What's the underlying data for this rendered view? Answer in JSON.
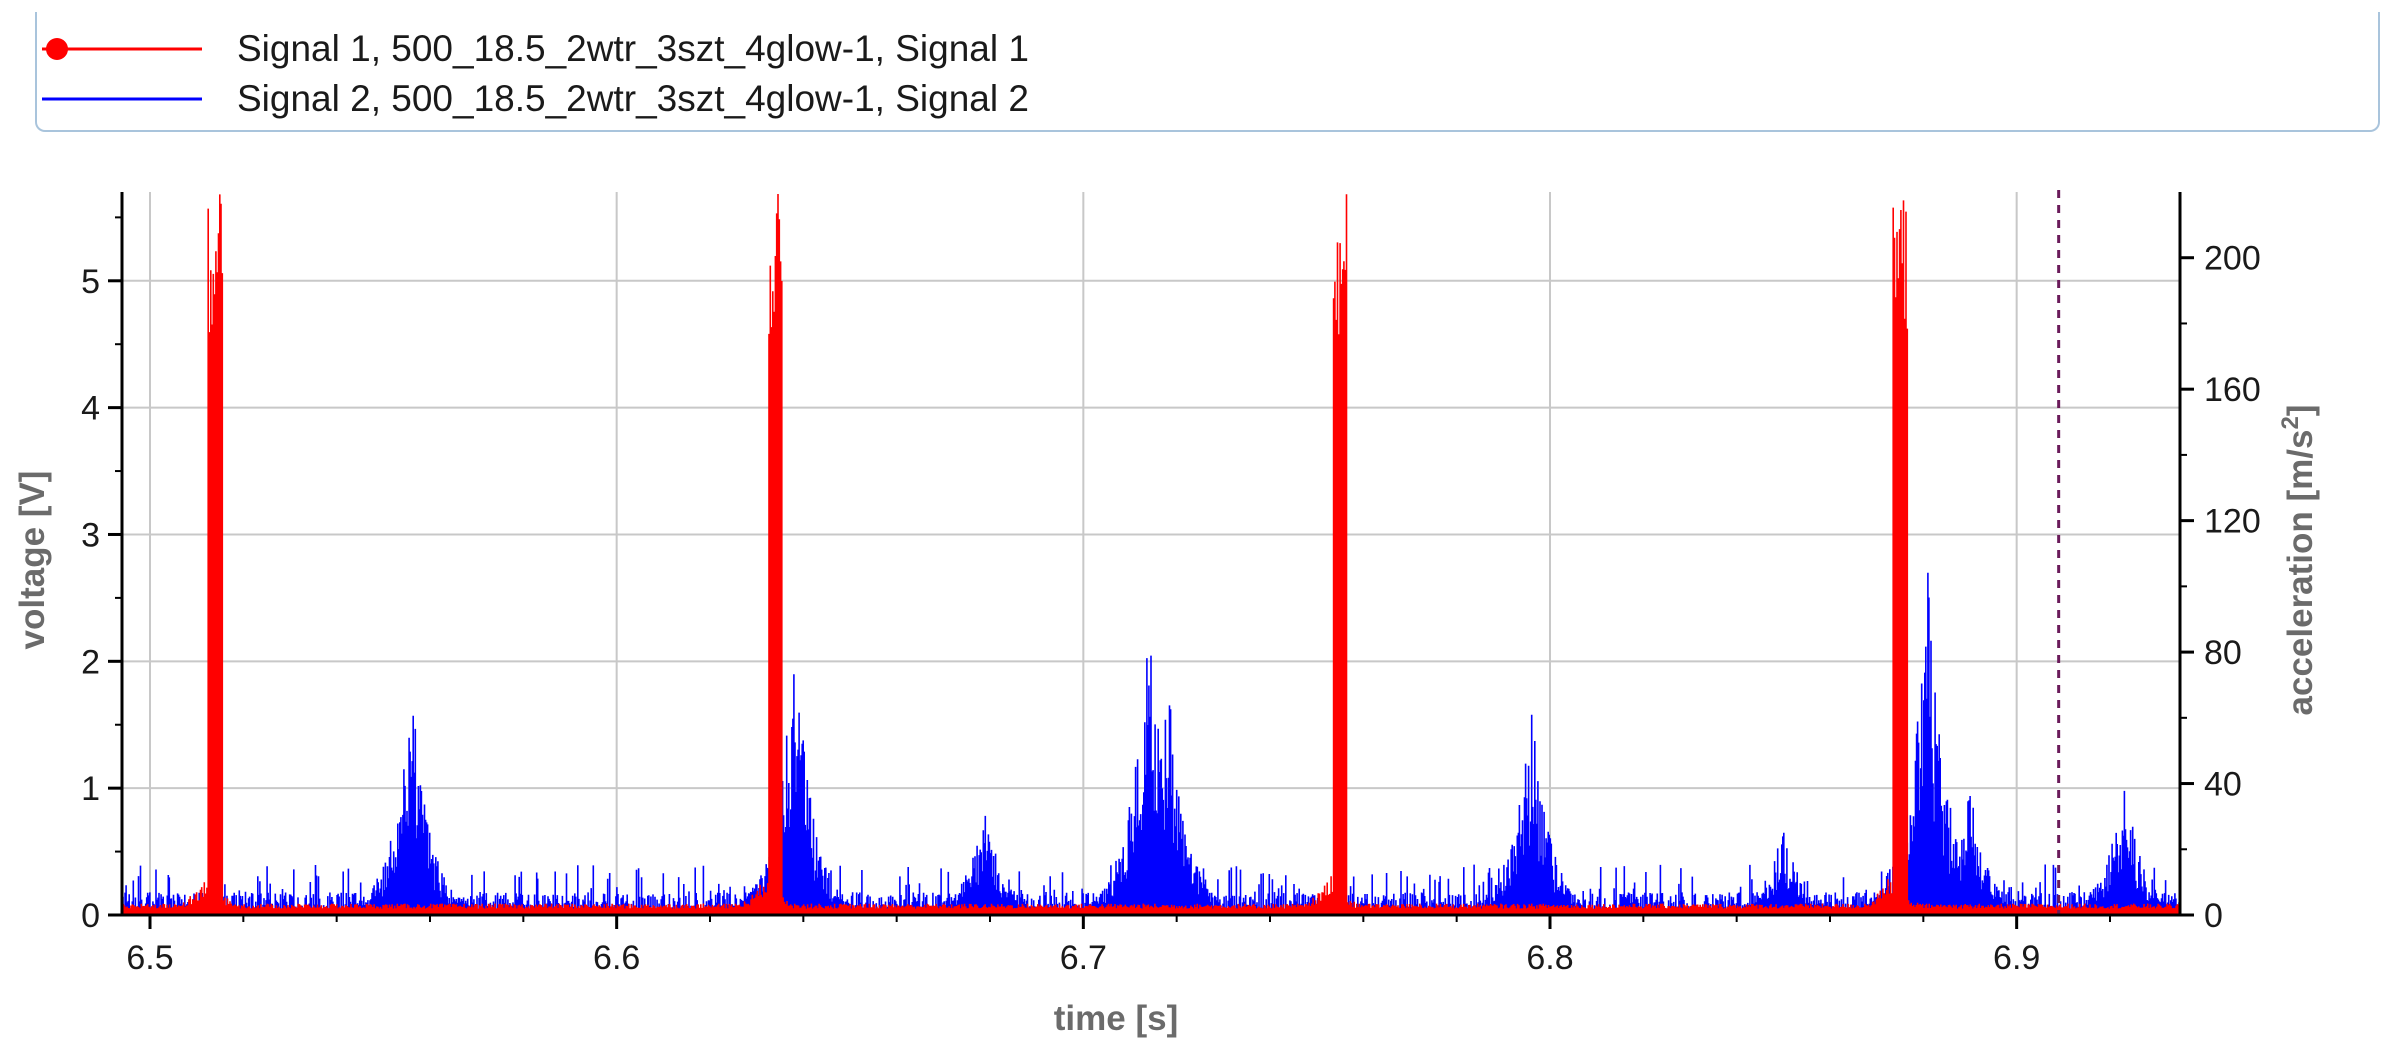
{
  "legend": {
    "items": [
      {
        "label": "Signal 1, 500_18.5_2wtr_3szt_4glow-1, Signal 1",
        "color": "#ff0000",
        "marker": "dot"
      },
      {
        "label": "Signal 2, 500_18.5_2wtr_3szt_4glow-1, Signal 2",
        "color": "#0000ff",
        "marker": "none"
      }
    ],
    "placement": "top"
  },
  "chart_data": {
    "type": "line",
    "xlabel": "time [s]",
    "ylabel": "voltage [V]",
    "y2label_main": "acceleration [m/s",
    "y2label_sup": "2",
    "y2label_end": "]",
    "xlim": [
      6.494,
      6.935
    ],
    "ylim": [
      0,
      5.7
    ],
    "y2lim": [
      0,
      220
    ],
    "xticks": [
      "6.5",
      "6.6",
      "6.7",
      "6.8",
      "6.9"
    ],
    "xtick_values": [
      6.5,
      6.6,
      6.7,
      6.8,
      6.9
    ],
    "yticks": [
      "0",
      "1",
      "2",
      "3",
      "4",
      "5"
    ],
    "ytick_values": [
      0,
      1,
      2,
      3,
      4,
      5
    ],
    "y2ticks": [
      "0",
      "40",
      "80",
      "120",
      "160",
      "200"
    ],
    "y2tick_values": [
      0,
      40,
      80,
      120,
      160,
      200
    ],
    "grid": true,
    "cursor_line_x": 6.909,
    "series": [
      {
        "name": "Signal 1",
        "axis": "left",
        "color": "#ff0000",
        "peaks": [
          6.514,
          6.634,
          6.755,
          6.875
        ],
        "peak_value": 5.7,
        "baseline": 0.05
      },
      {
        "name": "Signal 2",
        "axis": "right",
        "color": "#0000ff",
        "bursts": [
          {
            "x": 6.556,
            "peak": 70
          },
          {
            "x": 6.638,
            "peak": 87
          },
          {
            "x": 6.679,
            "peak": 37
          },
          {
            "x": 6.714,
            "peak": 95
          },
          {
            "x": 6.718,
            "peak": 75
          },
          {
            "x": 6.796,
            "peak": 65
          },
          {
            "x": 6.85,
            "peak": 28
          },
          {
            "x": 6.881,
            "peak": 111
          },
          {
            "x": 6.89,
            "peak": 40
          },
          {
            "x": 6.923,
            "peak": 43
          }
        ],
        "noise_level": 7
      }
    ]
  }
}
